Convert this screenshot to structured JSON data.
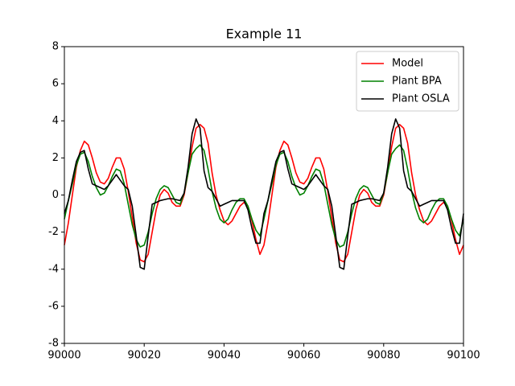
{
  "chart_data": {
    "type": "line",
    "title": "Example 11",
    "x": [
      90000,
      90001,
      90002,
      90003,
      90004,
      90005,
      90006,
      90007,
      90008,
      90009,
      90010,
      90011,
      90012,
      90013,
      90014,
      90015,
      90016,
      90017,
      90018,
      90019,
      90020,
      90021,
      90022,
      90023,
      90024,
      90025,
      90026,
      90027,
      90028,
      90029,
      90030,
      90031,
      90032,
      90033,
      90034,
      90035,
      90036,
      90037,
      90038,
      90039,
      90040,
      90041,
      90042,
      90043,
      90044,
      90045,
      90046,
      90047,
      90048,
      90049,
      90050,
      90051,
      90052,
      90053,
      90054,
      90055,
      90056,
      90057,
      90058,
      90059,
      90060,
      90061,
      90062,
      90063,
      90064,
      90065,
      90066,
      90067,
      90068,
      90069,
      90070,
      90071,
      90072,
      90073,
      90074,
      90075,
      90076,
      90077,
      90078,
      90079,
      90080,
      90081,
      90082,
      90083,
      90084,
      90085,
      90086,
      90087,
      90088,
      90089,
      90090,
      90091,
      90092,
      90093,
      90094,
      90095,
      90096,
      90097,
      90098,
      90099,
      90100
    ],
    "series": [
      {
        "name": "Model",
        "color": "#ff0000",
        "values": [
          -2.7,
          -1.5,
          0,
          1.5,
          2.4,
          2.9,
          2.7,
          2.0,
          1.2,
          0.7,
          0.6,
          0.9,
          1.5,
          2.0,
          2.0,
          1.4,
          0.2,
          -1.2,
          -2.6,
          -3.5,
          -3.6,
          -3.2,
          -2.0,
          -0.8,
          0,
          0.3,
          0.1,
          -0.4,
          -0.6,
          -0.6,
          0,
          1.2,
          2.6,
          3.6,
          3.8,
          3.6,
          2.8,
          1.2,
          0,
          -0.8,
          -1.4,
          -1.6,
          -1.4,
          -1.0,
          -0.6,
          -0.4,
          -0.6,
          -1.4,
          -2.4,
          -3.2,
          -2.7,
          -1.5,
          0,
          1.5,
          2.4,
          2.9,
          2.7,
          2.0,
          1.2,
          0.7,
          0.6,
          0.9,
          1.5,
          2.0,
          2.0,
          1.4,
          0.2,
          -1.2,
          -2.6,
          -3.5,
          -3.6,
          -3.2,
          -2.0,
          -0.8,
          0,
          0.3,
          0.1,
          -0.4,
          -0.6,
          -0.6,
          0,
          1.2,
          2.6,
          3.6,
          3.8,
          3.6,
          2.8,
          1.2,
          0,
          -0.8,
          -1.4,
          -1.6,
          -1.4,
          -1.0,
          -0.6,
          -0.4,
          -0.6,
          -1.4,
          -2.4,
          -3.2,
          -2.7
        ]
      },
      {
        "name": "Plant BPA",
        "color": "#008000",
        "values": [
          -1.3,
          -0.3,
          0.6,
          1.6,
          2.2,
          2.3,
          1.8,
          1.0,
          0.4,
          0,
          0.1,
          0.5,
          1.0,
          1.4,
          1.3,
          0.6,
          -0.5,
          -1.6,
          -2.4,
          -2.8,
          -2.7,
          -2.0,
          -1.0,
          -0.2,
          0.3,
          0.5,
          0.4,
          0,
          -0.4,
          -0.5,
          0.1,
          1.2,
          2.2,
          2.5,
          2.7,
          2.4,
          1.4,
          0.2,
          -0.7,
          -1.3,
          -1.5,
          -1.3,
          -0.8,
          -0.4,
          -0.2,
          -0.2,
          -0.6,
          -1.3,
          -1.9,
          -2.2,
          -1.3,
          -0.3,
          0.6,
          1.6,
          2.2,
          2.3,
          1.8,
          1.0,
          0.4,
          0,
          0.1,
          0.5,
          1.0,
          1.4,
          1.3,
          0.6,
          -0.5,
          -1.6,
          -2.4,
          -2.8,
          -2.7,
          -2.0,
          -1.0,
          -0.2,
          0.3,
          0.5,
          0.4,
          0,
          -0.4,
          -0.5,
          0.1,
          1.2,
          2.2,
          2.5,
          2.7,
          2.4,
          1.4,
          0.2,
          -0.7,
          -1.3,
          -1.5,
          -1.3,
          -0.8,
          -0.4,
          -0.2,
          -0.2,
          -0.6,
          -1.3,
          -1.9,
          -2.2,
          -1.3
        ]
      },
      {
        "name": "Plant OSLA",
        "color": "#000000",
        "values": [
          -1.0,
          -0.3,
          0.8,
          1.8,
          2.3,
          2.4,
          1.4,
          0.6,
          0.5,
          0.4,
          0.3,
          0.5,
          0.8,
          1.1,
          0.8,
          0.5,
          0.3,
          -0.6,
          -2.2,
          -3.9,
          -4.0,
          -2.2,
          -0.5,
          -0.4,
          -0.3,
          -0.25,
          -0.2,
          -0.2,
          -0.25,
          -0.3,
          0.1,
          1.5,
          3.3,
          4.1,
          3.6,
          1.3,
          0.4,
          0.2,
          -0.2,
          -0.6,
          -0.5,
          -0.4,
          -0.3,
          -0.3,
          -0.3,
          -0.3,
          -0.8,
          -1.8,
          -2.6,
          -2.6,
          -1.0,
          -0.3,
          0.8,
          1.8,
          2.3,
          2.4,
          1.4,
          0.6,
          0.5,
          0.4,
          0.3,
          0.5,
          0.8,
          1.1,
          0.8,
          0.5,
          0.3,
          -0.6,
          -2.2,
          -3.9,
          -4.0,
          -2.2,
          -0.5,
          -0.4,
          -0.3,
          -0.25,
          -0.2,
          -0.2,
          -0.25,
          -0.3,
          0.1,
          1.5,
          3.3,
          4.1,
          3.6,
          1.3,
          0.4,
          0.2,
          -0.2,
          -0.6,
          -0.5,
          -0.4,
          -0.3,
          -0.3,
          -0.3,
          -0.3,
          -0.8,
          -1.8,
          -2.6,
          -2.6,
          -1.0
        ]
      }
    ],
    "xlim": [
      90000,
      90100
    ],
    "xticks": [
      90000,
      90020,
      90040,
      90060,
      90080,
      90100
    ],
    "ylim": [
      -8,
      8
    ],
    "yticks": [
      -8,
      -6,
      -4,
      -2,
      0,
      2,
      4,
      6,
      8
    ],
    "grid": false,
    "legend": "upper right"
  }
}
